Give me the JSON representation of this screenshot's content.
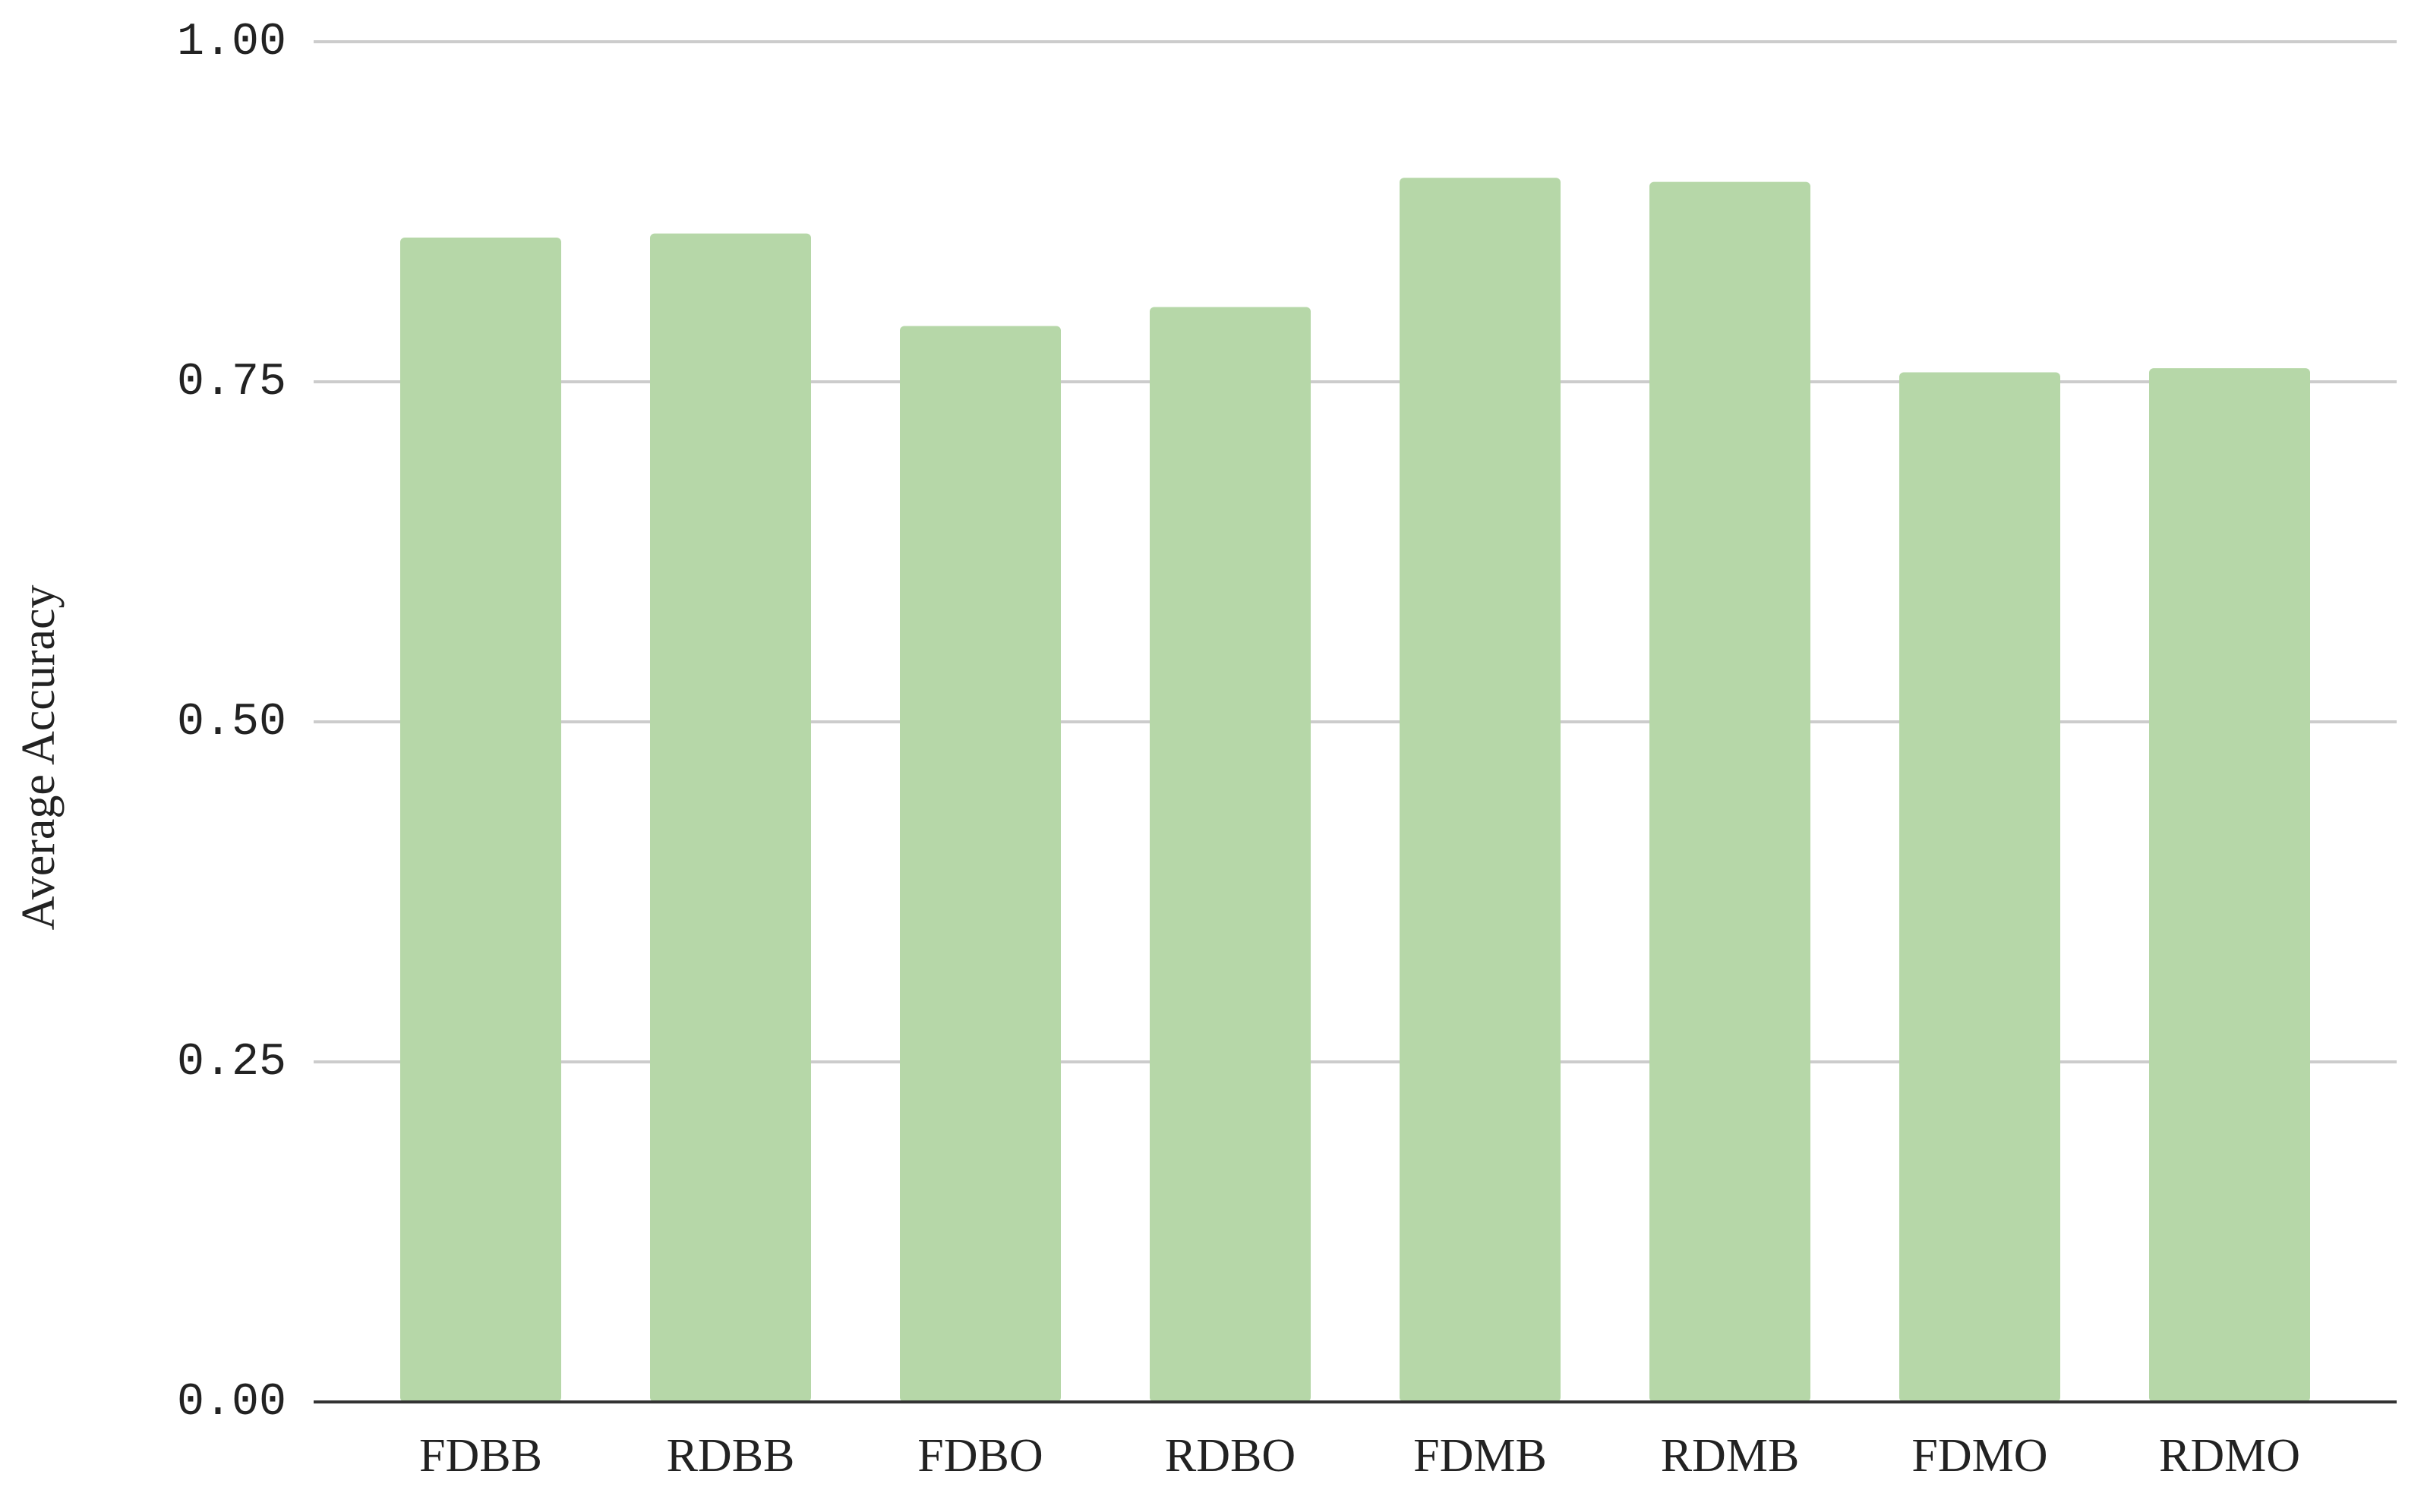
{
  "chart_data": {
    "type": "bar",
    "y_label": "Average Accuracy",
    "categories": [
      "FDBB",
      "RDBB",
      "FDBO",
      "RDBO",
      "FDMB",
      "RDMB",
      "FDMO",
      "RDMO"
    ],
    "values": [
      0.856,
      0.859,
      0.791,
      0.805,
      0.9,
      0.897,
      0.757,
      0.76
    ],
    "color": "#b6d7a8",
    "ylim": [
      0,
      1
    ],
    "yticks": [
      {
        "value": 0,
        "label": "0.00"
      },
      {
        "value": 0.25,
        "label": "0.25"
      },
      {
        "value": 0.5,
        "label": "0.50"
      },
      {
        "value": 0.75,
        "label": "0.75"
      },
      {
        "value": 1,
        "label": "1.00"
      }
    ],
    "grid": true
  }
}
